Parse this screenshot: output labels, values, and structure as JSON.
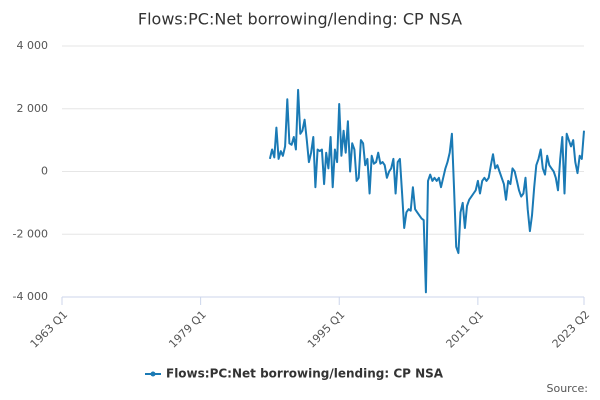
{
  "chart_data": {
    "type": "line",
    "title": "Flows:PC:Net borrowing/lending: CP NSA",
    "source": "Source:",
    "x": [
      "1987 Q1",
      "1987 Q2",
      "1987 Q3",
      "1987 Q4",
      "1988 Q1",
      "1988 Q2",
      "1988 Q3",
      "1988 Q4",
      "1989 Q1",
      "1989 Q2",
      "1989 Q3",
      "1989 Q4",
      "1990 Q1",
      "1990 Q2",
      "1990 Q3",
      "1990 Q4",
      "1991 Q1",
      "1991 Q2",
      "1991 Q3",
      "1991 Q4",
      "1992 Q1",
      "1992 Q2",
      "1992 Q3",
      "1992 Q4",
      "1993 Q1",
      "1993 Q2",
      "1993 Q3",
      "1993 Q4",
      "1994 Q1",
      "1994 Q2",
      "1994 Q3",
      "1994 Q4",
      "1995 Q1",
      "1995 Q2",
      "1995 Q3",
      "1995 Q4",
      "1996 Q1",
      "1996 Q2",
      "1996 Q3",
      "1996 Q4",
      "1997 Q1",
      "1997 Q2",
      "1997 Q3",
      "1997 Q4",
      "1998 Q1",
      "1998 Q2",
      "1998 Q3",
      "1998 Q4",
      "1999 Q1",
      "1999 Q2",
      "1999 Q3",
      "1999 Q4",
      "2000 Q1",
      "2000 Q2",
      "2000 Q3",
      "2000 Q4",
      "2001 Q1",
      "2001 Q2",
      "2001 Q3",
      "2001 Q4",
      "2002 Q1",
      "2002 Q2",
      "2002 Q3",
      "2002 Q4",
      "2003 Q1",
      "2003 Q2",
      "2003 Q3",
      "2003 Q4",
      "2004 Q1",
      "2004 Q2",
      "2004 Q3",
      "2004 Q4",
      "2005 Q1",
      "2005 Q2",
      "2005 Q3",
      "2005 Q4",
      "2006 Q1",
      "2006 Q2",
      "2006 Q3",
      "2006 Q4",
      "2007 Q1",
      "2007 Q2",
      "2007 Q3",
      "2007 Q4",
      "2008 Q1",
      "2008 Q2",
      "2008 Q3",
      "2008 Q4",
      "2009 Q1",
      "2009 Q2",
      "2009 Q3",
      "2009 Q4",
      "2010 Q1",
      "2010 Q2",
      "2010 Q3",
      "2010 Q4",
      "2011 Q1",
      "2011 Q2",
      "2011 Q3",
      "2011 Q4",
      "2012 Q1",
      "2012 Q2",
      "2012 Q3",
      "2012 Q4",
      "2013 Q1",
      "2013 Q2",
      "2013 Q3",
      "2013 Q4",
      "2014 Q1",
      "2014 Q2",
      "2014 Q3",
      "2014 Q4",
      "2015 Q1",
      "2015 Q2",
      "2015 Q3",
      "2015 Q4",
      "2016 Q1",
      "2016 Q2",
      "2016 Q3",
      "2016 Q4",
      "2017 Q1",
      "2017 Q2",
      "2017 Q3",
      "2017 Q4",
      "2018 Q1",
      "2018 Q2",
      "2018 Q3",
      "2018 Q4",
      "2019 Q1",
      "2019 Q2",
      "2019 Q3",
      "2019 Q4",
      "2020 Q1",
      "2020 Q2",
      "2020 Q3",
      "2020 Q4",
      "2021 Q1",
      "2021 Q2",
      "2021 Q3",
      "2021 Q4",
      "2022 Q1",
      "2022 Q2",
      "2022 Q3",
      "2022 Q4",
      "2023 Q1",
      "2023 Q2"
    ],
    "series": [
      {
        "name": "Flows:PC:Net borrowing/lending: CP NSA",
        "color": "#1a7ab5",
        "values": [
          400,
          700,
          450,
          1400,
          400,
          650,
          500,
          800,
          2300,
          900,
          850,
          1100,
          700,
          2600,
          1200,
          1300,
          1650,
          1000,
          300,
          600,
          1100,
          -500,
          700,
          650,
          700,
          -400,
          600,
          100,
          1100,
          -500,
          700,
          300,
          2150,
          500,
          1300,
          600,
          1600,
          0,
          900,
          700,
          -300,
          -200,
          1000,
          900,
          200,
          400,
          -700,
          500,
          250,
          300,
          600,
          250,
          300,
          200,
          -200,
          0,
          100,
          400,
          -700,
          300,
          400,
          -700,
          -1800,
          -1300,
          -1200,
          -1250,
          -500,
          -1200,
          -1300,
          -1400,
          -1500,
          -1550,
          -3850,
          -300,
          -100,
          -300,
          -200,
          -300,
          -200,
          -500,
          -200,
          100,
          300,
          600,
          1200,
          -500,
          -2400,
          -2600,
          -1300,
          -1000,
          -1800,
          -1100,
          -900,
          -800,
          -700,
          -600,
          -300,
          -700,
          -300,
          -200,
          -300,
          -200,
          200,
          550,
          100,
          200,
          0,
          -200,
          -400,
          -900,
          -300,
          -400,
          100,
          0,
          -300,
          -600,
          -800,
          -700,
          -200,
          -1200,
          -1900,
          -1400,
          -500,
          200,
          400,
          700,
          100,
          -100,
          500,
          200,
          100,
          0,
          -200,
          -600,
          400,
          1100,
          -700,
          1200,
          1000,
          800,
          1000,
          300,
          -50,
          500,
          400,
          1300
        ]
      }
    ],
    "xlim": [
      "1963 Q1",
      "2023 Q2"
    ],
    "xticks": [
      "1963 Q1",
      "1979 Q1",
      "1995 Q1",
      "2011 Q1",
      "2023 Q2"
    ],
    "ylim": [
      -4000,
      4000
    ],
    "yticks": [
      {
        "value": -4000,
        "label": "-4 000"
      },
      {
        "value": -2000,
        "label": "-2 000"
      },
      0,
      {
        "value": 2000,
        "label": "2 000"
      },
      {
        "value": 4000,
        "label": "4 000"
      }
    ],
    "grid": true,
    "legend": "bottom"
  }
}
